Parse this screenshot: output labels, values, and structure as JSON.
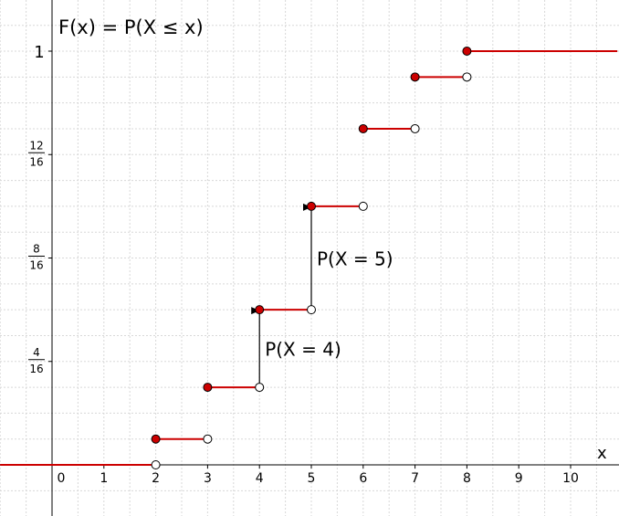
{
  "chart_data": {
    "type": "step",
    "title": "F(x) = P(X ≤ x)",
    "xlabel": "x",
    "ylabel": "",
    "xlim": [
      -1,
      10.9
    ],
    "ylim": [
      -0.11,
      1.1
    ],
    "grid": true,
    "x_ticks": [
      {
        "value": 0,
        "label": "0"
      },
      {
        "value": 1,
        "label": "1"
      },
      {
        "value": 2,
        "label": "2"
      },
      {
        "value": 3,
        "label": "3"
      },
      {
        "value": 4,
        "label": "4"
      },
      {
        "value": 5,
        "label": "5"
      },
      {
        "value": 6,
        "label": "6"
      },
      {
        "value": 7,
        "label": "7"
      },
      {
        "value": 8,
        "label": "8"
      },
      {
        "value": 9,
        "label": "9"
      },
      {
        "value": 10,
        "label": "10"
      }
    ],
    "y_ticks": [
      {
        "value": 0.25,
        "num": "4",
        "den": "16"
      },
      {
        "value": 0.5,
        "num": "8",
        "den": "16"
      },
      {
        "value": 0.75,
        "num": "12",
        "den": "16"
      },
      {
        "value": 1,
        "label": "1"
      }
    ],
    "steps": [
      {
        "x0": -1,
        "x1": 2,
        "y": 0,
        "closed_start": false,
        "open_end": true
      },
      {
        "x0": 2,
        "x1": 3,
        "y": 0.0625,
        "closed_start": true,
        "open_end": true
      },
      {
        "x0": 3,
        "x1": 4,
        "y": 0.1875,
        "closed_start": true,
        "open_end": true
      },
      {
        "x0": 4,
        "x1": 5,
        "y": 0.375,
        "closed_start": true,
        "open_end": true
      },
      {
        "x0": 5,
        "x1": 6,
        "y": 0.625,
        "closed_start": true,
        "open_end": true
      },
      {
        "x0": 6,
        "x1": 7,
        "y": 0.8125,
        "closed_start": true,
        "open_end": true
      },
      {
        "x0": 7,
        "x1": 8,
        "y": 0.9375,
        "closed_start": true,
        "open_end": true
      },
      {
        "x0": 8,
        "x1": 10.9,
        "y": 1,
        "closed_start": true,
        "open_end": false
      }
    ],
    "jumps": [
      {
        "x": 4,
        "from": 0.1875,
        "to": 0.375,
        "label": "P(X = 4)"
      },
      {
        "x": 5,
        "from": 0.375,
        "to": 0.625,
        "label": "P(X = 5)"
      }
    ],
    "colors": {
      "step": "#cc0000",
      "closed_dot": "#cc0000",
      "open_dot": "#ffffff",
      "dot_outline": "#000000",
      "grid": "#d8d8d8",
      "axis": "#000000"
    }
  }
}
